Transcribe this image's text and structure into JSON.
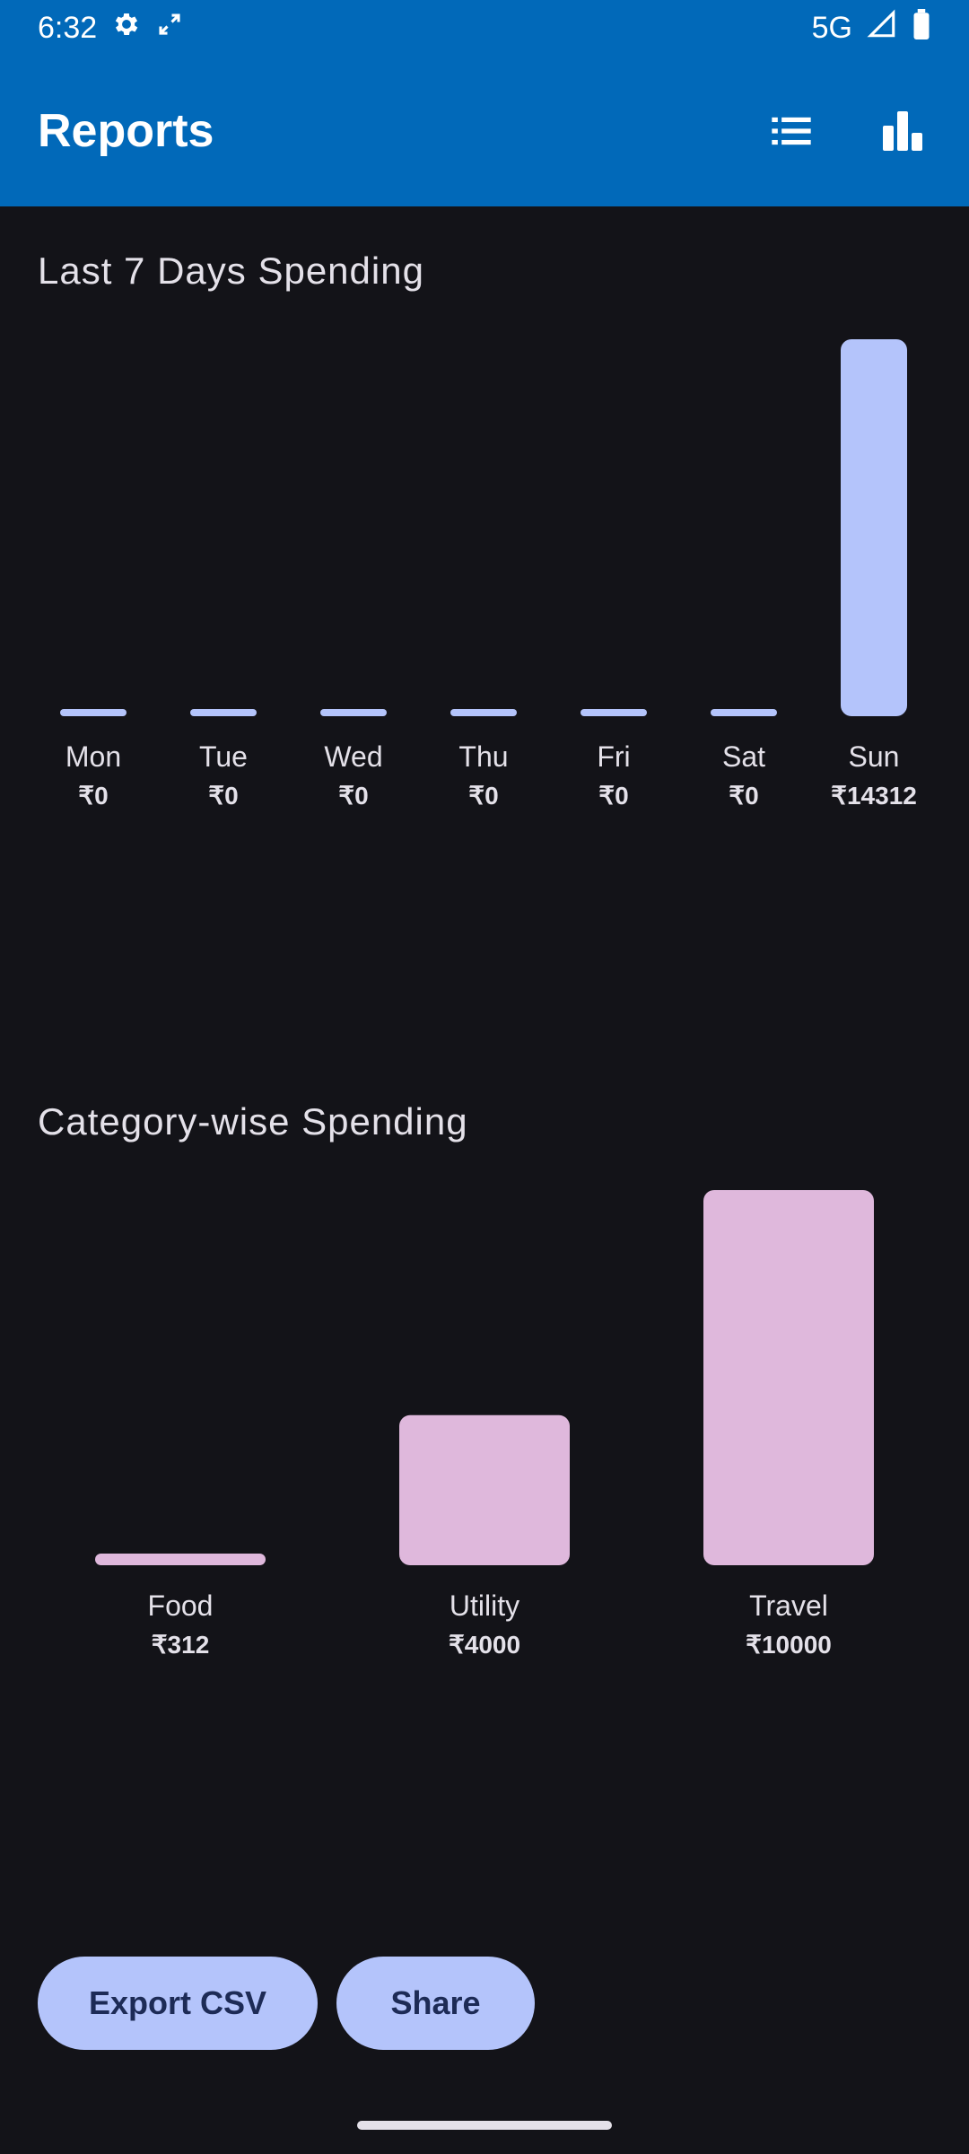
{
  "status_bar": {
    "time": "6:32",
    "network": "5G"
  },
  "app_bar": {
    "title": "Reports",
    "actions": [
      {
        "name": "list-view",
        "icon": "list-icon"
      },
      {
        "name": "chart-view",
        "icon": "bar-chart-icon"
      }
    ]
  },
  "colors": {
    "app_bar": "#0169b9",
    "background": "#131318",
    "weekly_bar": "#b4c4fb",
    "category_bar": "#dfb8dc",
    "button_bg": "#b4c4fb",
    "button_text": "#1d2b56"
  },
  "weekly": {
    "title": "Last 7 Days Spending"
  },
  "category": {
    "title": "Category-wise Spending"
  },
  "chart_data": [
    {
      "type": "bar",
      "title": "Last 7 Days Spending",
      "categories": [
        "Mon",
        "Tue",
        "Wed",
        "Thu",
        "Fri",
        "Sat",
        "Sun"
      ],
      "values": [
        0,
        0,
        0,
        0,
        0,
        0,
        14312
      ],
      "value_labels": [
        "₹0",
        "₹0",
        "₹0",
        "₹0",
        "₹0",
        "₹0",
        "₹14312"
      ]
    },
    {
      "type": "bar",
      "title": "Category-wise Spending",
      "categories": [
        "Food",
        "Utility",
        "Travel"
      ],
      "values": [
        312,
        4000,
        10000
      ],
      "value_labels": [
        "₹312",
        "₹4000",
        "₹10000"
      ]
    }
  ],
  "buttons": {
    "export": "Export CSV",
    "share": "Share"
  }
}
